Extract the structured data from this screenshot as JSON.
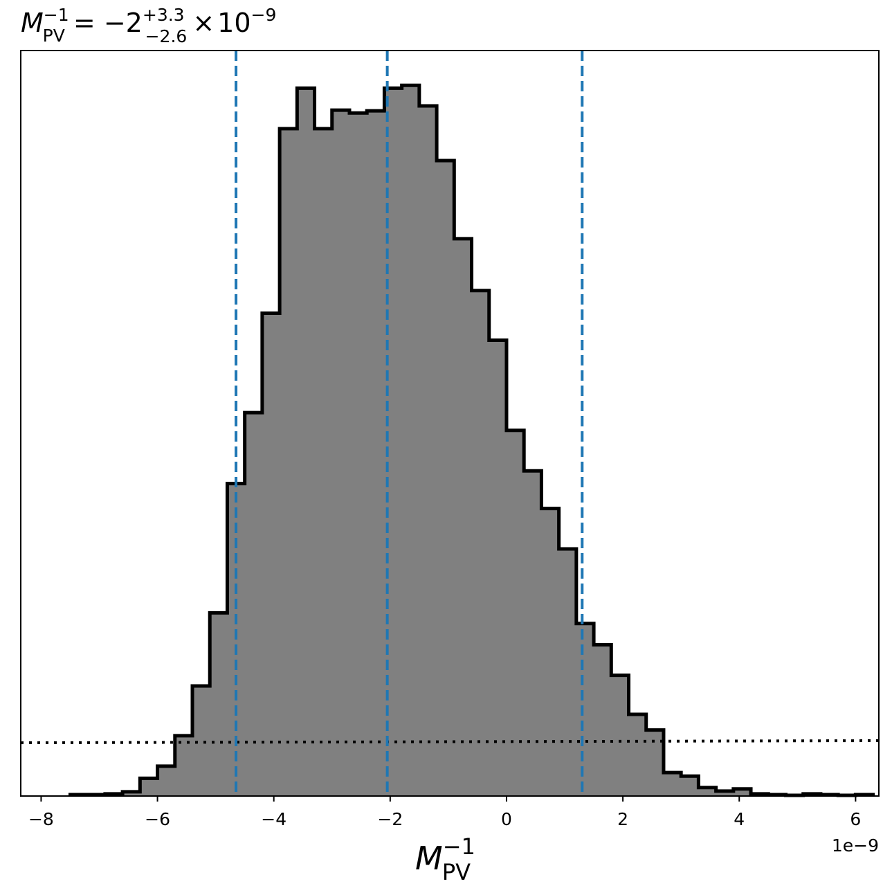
{
  "chart_data": {
    "type": "bar",
    "title": {
      "lhs": "M",
      "lhs_sub": "PV",
      "lhs_sup": "−1",
      "equals": " = ",
      "median": "−2",
      "upper_err": "+3.3",
      "lower_err": "−2.6",
      "times": "×",
      "base": "10",
      "exponent": "−9"
    },
    "xlabel": {
      "main": "M",
      "sub": "PV",
      "sup": "−1"
    },
    "x_offset_label": "1e−9",
    "ylabel": "",
    "xlim": [
      -8.35,
      6.4
    ],
    "ylim": [
      0,
      1050
    ],
    "x_ticks": [
      -8,
      -6,
      -4,
      -2,
      0,
      2,
      4,
      6
    ],
    "x_tick_labels": [
      "−8",
      "−6",
      "−4",
      "−2",
      "0",
      "2",
      "4",
      "6"
    ],
    "y_ticks_visible": false,
    "grid": false,
    "legend": "none",
    "bin_edges": [
      -7.5,
      -7.2,
      -6.9,
      -6.6,
      -6.3,
      -6.0,
      -5.7,
      -5.4,
      -5.1,
      -4.8,
      -4.5,
      -4.2,
      -3.9,
      -3.6,
      -3.3,
      -3.0,
      -2.7,
      -2.4,
      -2.1,
      -1.8,
      -1.5,
      -1.2,
      -0.9,
      -0.6,
      -0.3,
      0.0,
      0.3,
      0.6,
      0.9,
      1.2,
      1.5,
      1.8,
      2.1,
      2.4,
      2.7,
      3.0,
      3.3,
      3.6,
      3.9,
      4.2,
      4.5,
      4.8,
      5.1,
      5.4,
      5.7,
      6.0,
      6.3
    ],
    "counts": [
      2,
      2,
      3,
      6,
      25,
      42,
      85,
      155,
      258,
      440,
      540,
      680,
      940,
      997,
      940,
      966,
      962,
      965,
      997,
      1001,
      972,
      895,
      785,
      712,
      642,
      515,
      458,
      405,
      348,
      243,
      213,
      170,
      115,
      93,
      33,
      28,
      12,
      7,
      10,
      3,
      2,
      1,
      3,
      2,
      1,
      2
    ],
    "quantile_lines": [
      -4.65,
      -2.05,
      1.3
    ],
    "reference_line": {
      "left": 75,
      "right": 78
    },
    "colors": {
      "fill": "#808080",
      "edge": "#000000",
      "quantile_line": "#1f77b4",
      "reference_line": "#000000"
    }
  }
}
